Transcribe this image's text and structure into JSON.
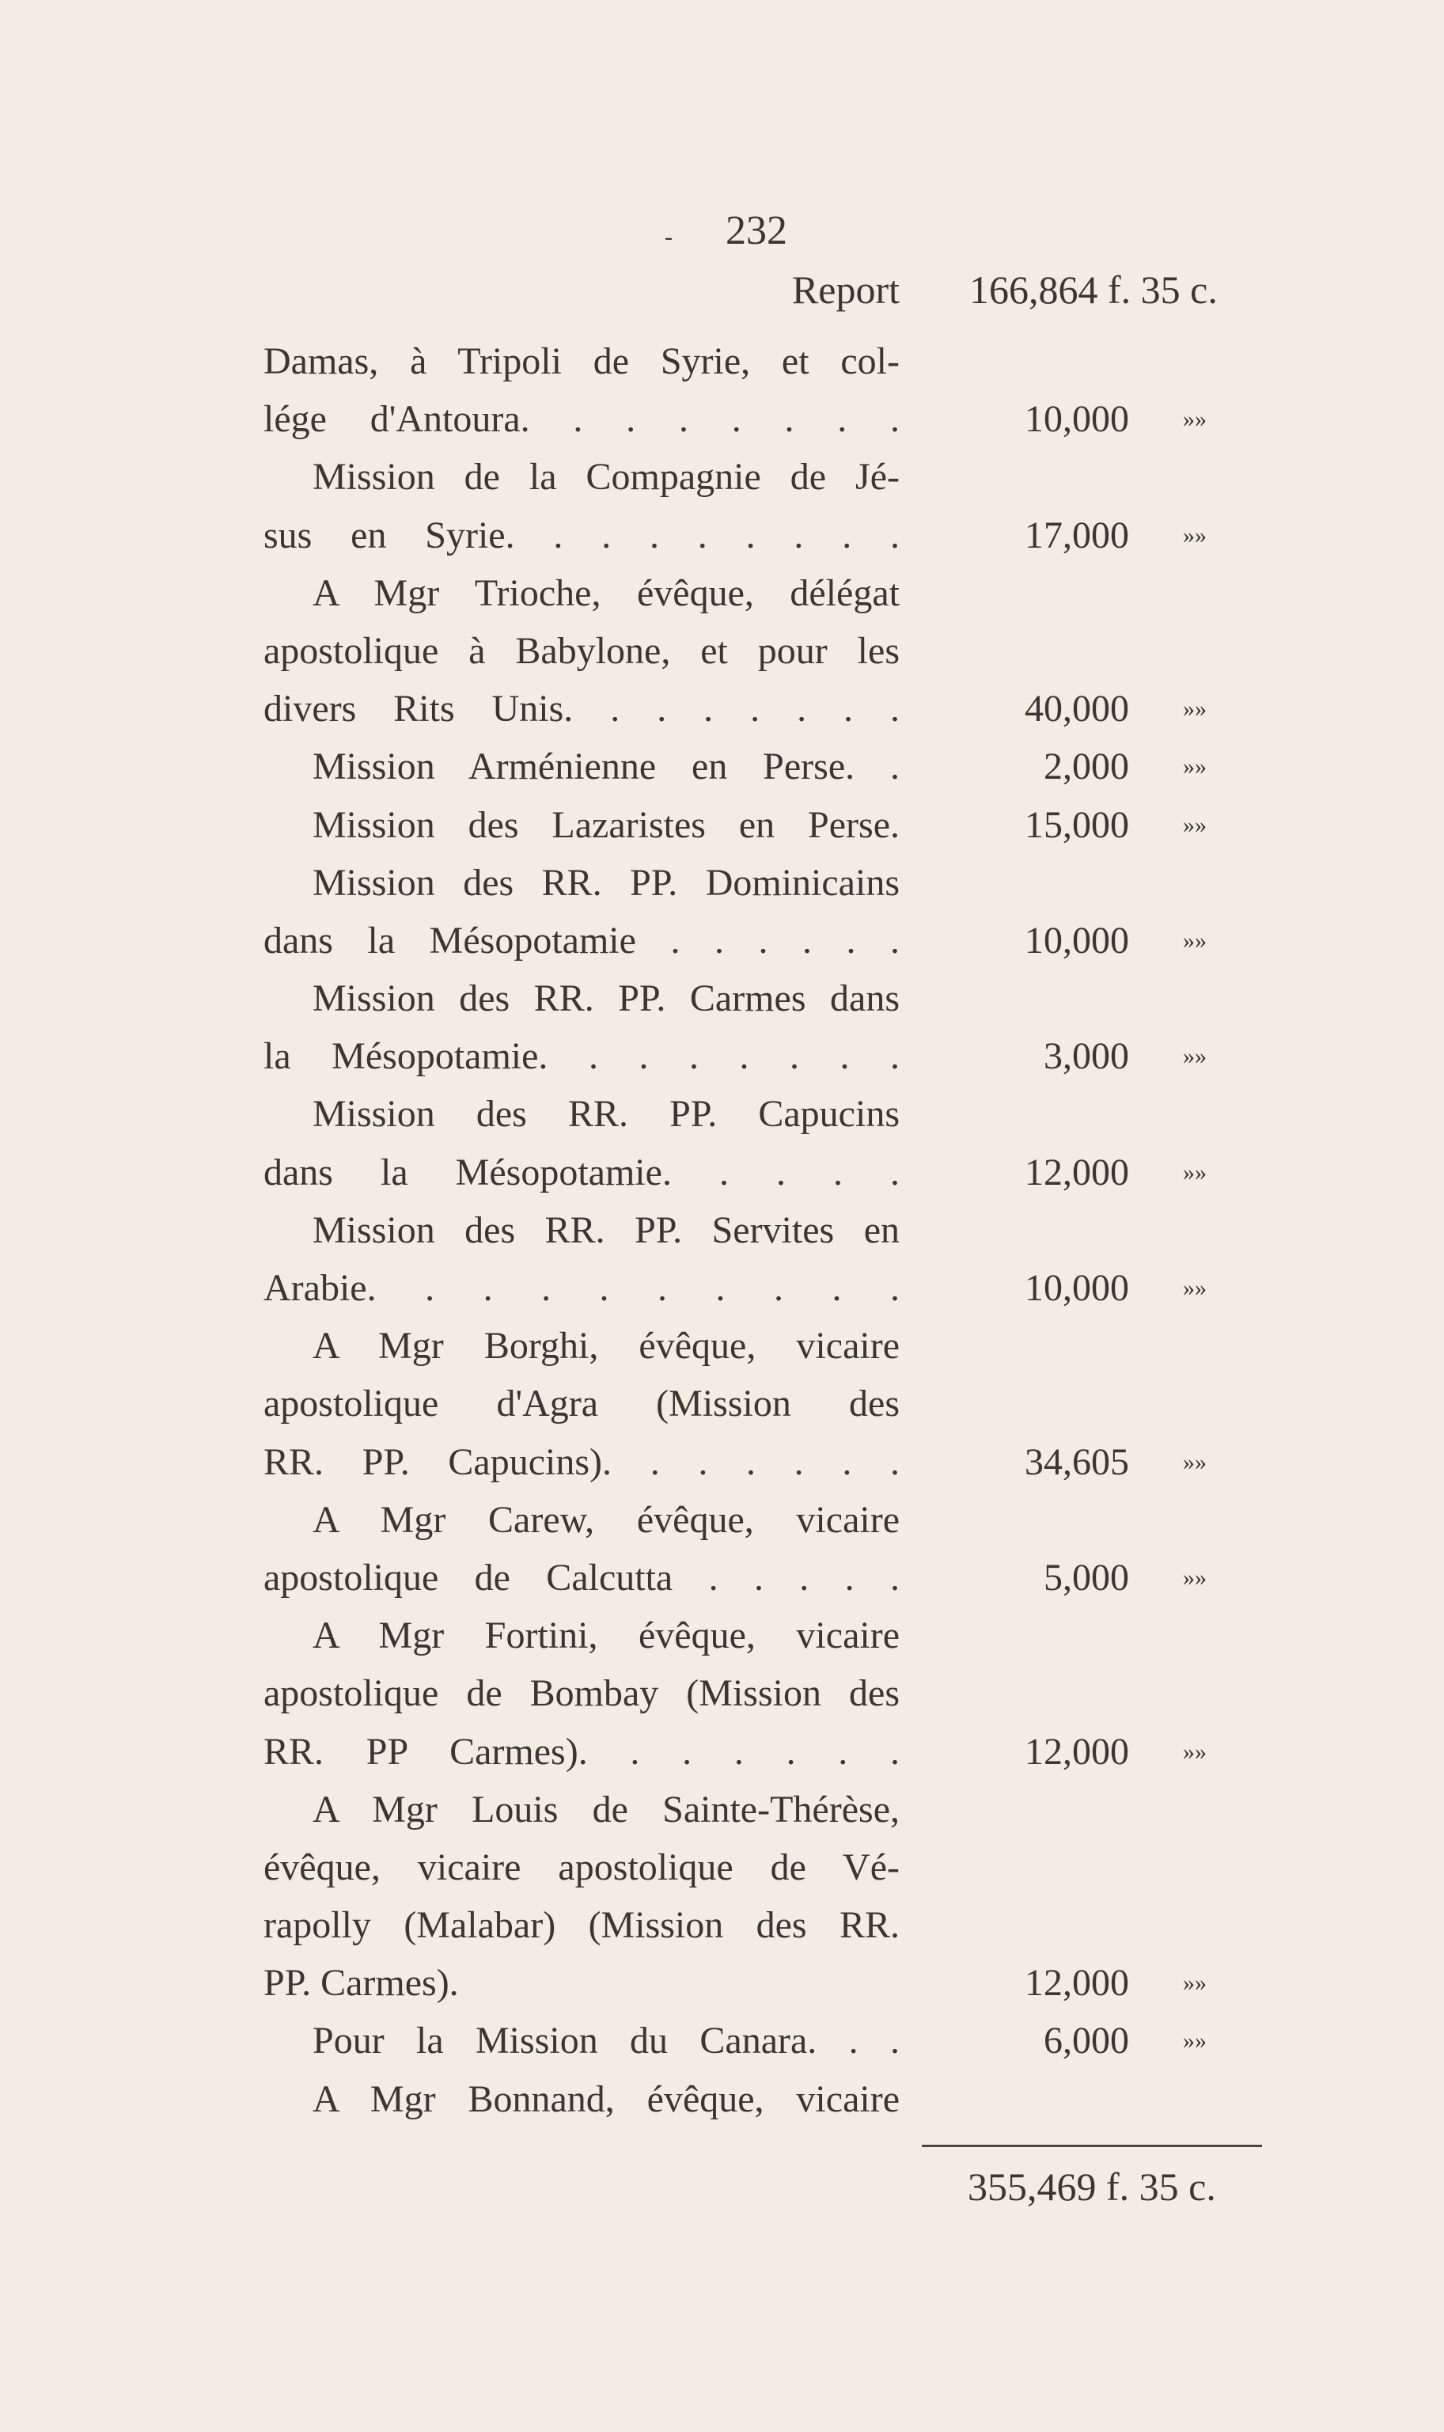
{
  "page_number": "232",
  "page_dash": "-",
  "report": {
    "label": "Report",
    "amount": "166,864 f. 35 c."
  },
  "entries": [
    {
      "continued": true,
      "lines": [
        "Damas, à Tripoli de Syrie, et col-",
        "lége d'Antoura. . . . . . . ."
      ],
      "amount": "10,000",
      "mark": "»»"
    },
    {
      "lines": [
        "Mission de la Compagnie de Jé-",
        "sus en Syrie. . . . . . . . ."
      ],
      "amount": "17,000",
      "mark": "»»"
    },
    {
      "lines": [
        "A Mgr Trioche, évêque, délégat",
        "apostolique à Babylone, et pour les",
        "divers Rits Unis. . . . . . . ."
      ],
      "amount": "40,000",
      "mark": "»»"
    },
    {
      "lines": [
        "Mission Arménienne en Perse. ."
      ],
      "amount": "2,000",
      "mark": "»»"
    },
    {
      "lines": [
        "Mission des Lazaristes en Perse."
      ],
      "amount": "15,000",
      "mark": "»»"
    },
    {
      "lines": [
        "Mission des RR. PP. Dominicains",
        "dans la Mésopotamie . . . . . ."
      ],
      "amount": "10,000",
      "mark": "»»"
    },
    {
      "lines": [
        "Mission des RR. PP. Carmes dans",
        "la Mésopotamie. . . . . . . ."
      ],
      "amount": "3,000",
      "mark": "»»"
    },
    {
      "lines": [
        "Mission des RR. PP. Capucins",
        "dans la Mésopotamie. . . . ."
      ],
      "amount": "12,000",
      "mark": "»»"
    },
    {
      "lines": [
        "Mission des RR. PP. Servites en",
        "Arabie. . . . . . . . . ."
      ],
      "amount": "10,000",
      "mark": "»»"
    },
    {
      "lines": [
        "A Mgr Borghi, évêque, vicaire",
        "apostolique d'Agra (Mission des",
        "RR. PP. Capucins). . . . . . ."
      ],
      "amount": "34,605",
      "mark": "»»"
    },
    {
      "lines": [
        "A Mgr Carew, évêque, vicaire",
        "apostolique de Calcutta . . . . ."
      ],
      "amount": "5,000",
      "mark": "»»"
    },
    {
      "lines": [
        "A Mgr Fortini, évêque, vicaire",
        "apostolique de Bombay (Mission des",
        "RR. PP Carmes). . . . . . ."
      ],
      "amount": "12,000",
      "mark": "»»"
    },
    {
      "lines": [
        "A Mgr Louis de Sainte-Thérèse,",
        "évêque, vicaire apostolique de Vé-",
        "rapolly (Malabar) (Mission des RR.",
        "PP. Carmes)."
      ],
      "amount": "12,000",
      "mark": "»»"
    },
    {
      "lines": [
        "Pour la Mission du Canara. . ."
      ],
      "amount": "6,000",
      "mark": "»»"
    },
    {
      "lines": [
        "A Mgr Bonnand, évêque, vicaire"
      ],
      "amount": "",
      "mark": ""
    }
  ],
  "total": "355,469 f. 35 c."
}
